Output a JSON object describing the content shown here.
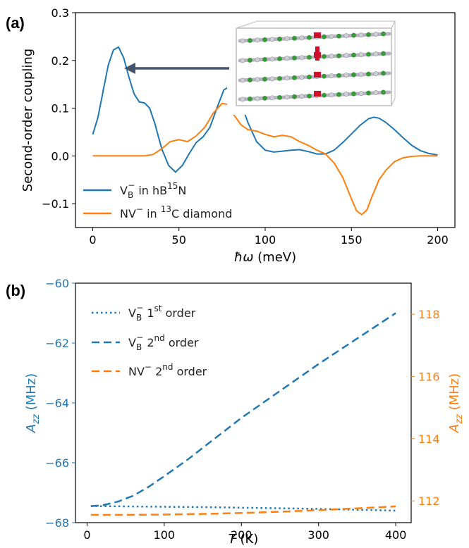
{
  "chart_data": [
    {
      "type": "line",
      "panel_label": "(a)",
      "xlabel_italic": "ħω",
      "xlabel_rest": " (meV)",
      "ylabel": "Second-order coupling",
      "xlim": [
        -10,
        210
      ],
      "ylim": [
        -0.15,
        0.3
      ],
      "xticks": [
        0,
        50,
        100,
        150,
        200
      ],
      "xtick_labels": [
        "0",
        "50",
        "100",
        "150",
        "200"
      ],
      "yticks": [
        -0.1,
        0.0,
        0.1,
        0.2,
        0.3
      ],
      "ytick_labels": [
        "−0.1",
        "0.0",
        "0.1",
        "0.2",
        "0.3"
      ],
      "inset": "hBN layered crystal structure",
      "series": [
        {
          "name": "VB⁻ in hB¹⁵N",
          "legend_main": "V",
          "legend_sub": "B",
          "legend_sup": "−",
          "legend_text": " in hB",
          "legend_sup2": "15",
          "legend_text2": "N",
          "color": "#1f77b4",
          "x": [
            0,
            3,
            6,
            9,
            12,
            15,
            18,
            21,
            24,
            27,
            30,
            33,
            36,
            40,
            44,
            48,
            52,
            56,
            60,
            64,
            68,
            72,
            76,
            79,
            82,
            86,
            90,
            95,
            100,
            105,
            110,
            115,
            120,
            125,
            130,
            135,
            140,
            145,
            150,
            155,
            160,
            163,
            166,
            170,
            175,
            180,
            185,
            190,
            195,
            200
          ],
          "y": [
            0.045,
            0.08,
            0.135,
            0.19,
            0.222,
            0.228,
            0.205,
            0.165,
            0.13,
            0.113,
            0.111,
            0.1,
            0.068,
            0.015,
            -0.02,
            -0.034,
            -0.02,
            0.005,
            0.028,
            0.04,
            0.06,
            0.1,
            0.138,
            0.145,
            0.14,
            0.11,
            0.07,
            0.03,
            0.012,
            0.008,
            0.01,
            0.012,
            0.013,
            0.009,
            0.004,
            0.004,
            0.012,
            0.028,
            0.046,
            0.064,
            0.078,
            0.081,
            0.079,
            0.07,
            0.055,
            0.038,
            0.022,
            0.011,
            0.005,
            0.002
          ]
        },
        {
          "name": "NV⁻ in ¹³C diamond",
          "legend_main": "NV",
          "legend_sup": "−",
          "legend_text": " in ",
          "legend_sup2": "13",
          "legend_text2": "C diamond",
          "color": "#ff7f0e",
          "x": [
            0,
            10,
            20,
            30,
            35,
            40,
            45,
            50,
            55,
            60,
            65,
            70,
            75,
            78,
            82,
            86,
            90,
            95,
            100,
            105,
            110,
            115,
            120,
            125,
            130,
            135,
            140,
            145,
            150,
            153,
            156,
            159,
            162,
            166,
            170,
            175,
            180,
            185,
            190,
            195,
            200
          ],
          "y": [
            0.0,
            0.0,
            0.0,
            0.0,
            0.003,
            0.015,
            0.03,
            0.034,
            0.03,
            0.042,
            0.06,
            0.09,
            0.11,
            0.108,
            0.085,
            0.065,
            0.055,
            0.052,
            0.045,
            0.04,
            0.043,
            0.04,
            0.03,
            0.022,
            0.012,
            0.004,
            -0.015,
            -0.045,
            -0.09,
            -0.115,
            -0.123,
            -0.113,
            -0.085,
            -0.05,
            -0.03,
            -0.012,
            -0.004,
            -0.001,
            0.0,
            0.0,
            0.0
          ]
        }
      ]
    },
    {
      "type": "line",
      "panel_label": "(b)",
      "xlabel_italic": "T",
      "xlabel_rest": " (K)",
      "ylabel_left_italic": "A",
      "ylabel_left_sub": "zz",
      "ylabel_left_rest": " (MHz)",
      "ylabel_right_italic": "A",
      "ylabel_right_sub": "zz",
      "ylabel_right_rest": " (MHz)",
      "xlim": [
        -15,
        420
      ],
      "ylim_left": [
        -68,
        -60
      ],
      "ylim_right": [
        111.3,
        119.0
      ],
      "xticks": [
        0,
        100,
        200,
        300,
        400
      ],
      "xtick_labels": [
        "0",
        "100",
        "200",
        "300",
        "400"
      ],
      "yticks_left": [
        -68,
        -66,
        -64,
        -62,
        -60
      ],
      "ytick_labels_left": [
        "−68",
        "−66",
        "−64",
        "−62",
        "−60"
      ],
      "yticks_right": [
        112,
        114,
        116,
        118
      ],
      "ytick_labels_right": [
        "112",
        "114",
        "116",
        "118"
      ],
      "left_axis_color": "#1f77b4",
      "right_axis_color": "#ff7f0e",
      "series": [
        {
          "name": "VB⁻ 1st order",
          "legend_main": "V",
          "legend_sub": "B",
          "legend_sup": "−",
          "legend_text": " 1",
          "legend_sup2": "st",
          "legend_text2": " order",
          "color": "#1f77b4",
          "style": "dotted",
          "axis": "left",
          "x": [
            5,
            50,
            100,
            150,
            200,
            250,
            300,
            350,
            400
          ],
          "y": [
            -67.45,
            -67.46,
            -67.47,
            -67.48,
            -67.5,
            -67.52,
            -67.54,
            -67.57,
            -67.6
          ]
        },
        {
          "name": "VB⁻ 2nd order",
          "legend_main": "V",
          "legend_sub": "B",
          "legend_sup": "−",
          "legend_text": " 2",
          "legend_sup2": "nd",
          "legend_text2": " order",
          "color": "#1f77b4",
          "style": "dashed",
          "axis": "left",
          "x": [
            5,
            20,
            40,
            60,
            80,
            100,
            130,
            160,
            200,
            250,
            300,
            350,
            400
          ],
          "y": [
            -67.45,
            -67.42,
            -67.3,
            -67.1,
            -66.8,
            -66.45,
            -65.9,
            -65.3,
            -64.5,
            -63.6,
            -62.7,
            -61.85,
            -61.0
          ]
        },
        {
          "name": "NV⁻ 2nd order",
          "legend_main": "NV",
          "legend_sup": "−",
          "legend_text": " 2",
          "legend_sup2": "nd",
          "legend_text2": " order",
          "color": "#ff7f0e",
          "style": "dashed",
          "axis": "right",
          "x": [
            5,
            50,
            100,
            150,
            200,
            250,
            300,
            350,
            400
          ],
          "y": [
            111.55,
            111.55,
            111.56,
            111.58,
            111.61,
            111.65,
            111.7,
            111.76,
            111.82
          ]
        }
      ]
    }
  ]
}
